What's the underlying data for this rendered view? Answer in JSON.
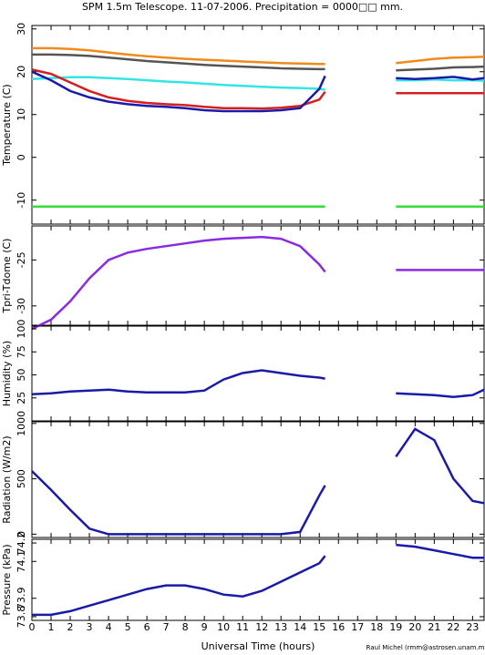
{
  "chart_data": [
    {
      "type": "line",
      "title": "SPM 1.5m Telescope. 11-07-2006. Precipitation = 0000□□ mm.",
      "ylabel": "Temperature (C)",
      "x": [
        0,
        1,
        2,
        3,
        4,
        5,
        6,
        7,
        8,
        9,
        10,
        11,
        12,
        13,
        14,
        15,
        15.3,
        17,
        19,
        20,
        21,
        22,
        23,
        23.6
      ],
      "xlim": [
        0,
        23.6
      ],
      "xticks": [
        0,
        1,
        2,
        3,
        4,
        5,
        6,
        7,
        8,
        9,
        10,
        11,
        12,
        13,
        14,
        15,
        16,
        17,
        18,
        19,
        20,
        21,
        22,
        23
      ],
      "ylim": [
        -15.6,
        30.8
      ],
      "yticks": [
        30,
        20,
        10,
        0,
        -10
      ],
      "series": [
        {
          "color": "#f08a1c",
          "values": [
            25.5,
            25.5,
            25.3,
            25,
            24.5,
            24,
            23.6,
            23.3,
            23,
            22.8,
            22.6,
            22.4,
            22.2,
            22,
            21.9,
            21.8,
            21.8,
            null,
            22,
            22.5,
            23,
            23.3,
            23.4,
            23.5
          ]
        },
        {
          "color": "#555555",
          "values": [
            24,
            24,
            23.9,
            23.7,
            23.3,
            22.9,
            22.5,
            22.2,
            21.9,
            21.6,
            21.4,
            21.2,
            21,
            20.8,
            20.7,
            20.6,
            20.6,
            null,
            20.3,
            20.5,
            20.7,
            21,
            21.1,
            21.2
          ]
        },
        {
          "color": "#33e5e5",
          "values": [
            18.3,
            18.5,
            18.7,
            18.7,
            18.5,
            18.3,
            18,
            17.7,
            17.5,
            17.2,
            16.9,
            16.7,
            16.5,
            16.3,
            16.2,
            16,
            15.8,
            null,
            18,
            18,
            18.2,
            18,
            18,
            17.9
          ]
        },
        {
          "color": "#d42020",
          "values": [
            20.5,
            19.5,
            17.5,
            15.5,
            14,
            13.2,
            12.7,
            12.4,
            12.2,
            11.8,
            11.5,
            11.5,
            11.4,
            11.6,
            12,
            13.5,
            15.3,
            null,
            15,
            15,
            15,
            15,
            15,
            15
          ]
        },
        {
          "color": "#1a1aa8",
          "values": [
            20,
            18,
            15.5,
            14,
            13,
            12.4,
            12,
            11.8,
            11.5,
            11,
            10.8,
            10.8,
            10.8,
            11,
            11.5,
            16,
            19,
            null,
            18.5,
            18.3,
            18.5,
            18.8,
            18.2,
            18.5
          ]
        },
        {
          "color": "#33dd33",
          "values": [
            -11.5,
            -11.5,
            -11.5,
            -11.5,
            -11.5,
            -11.5,
            -11.5,
            -11.5,
            -11.5,
            -11.5,
            -11.5,
            -11.5,
            -11.5,
            -11.5,
            -11.5,
            -11.5,
            -11.5,
            null,
            -11.5,
            -11.5,
            -11.5,
            -11.5,
            -11.5,
            -11.5
          ]
        }
      ]
    },
    {
      "type": "line",
      "ylabel": "Tpri-Tdome (C)",
      "x": [
        0,
        1,
        2,
        3,
        4,
        5,
        6,
        7,
        8,
        9,
        10,
        11,
        12,
        13,
        14,
        15,
        15.3,
        17,
        19,
        20,
        21,
        22,
        23,
        23.6
      ],
      "xlim": [
        0,
        23.6
      ],
      "xticks": [
        0,
        1,
        2,
        3,
        4,
        5,
        6,
        7,
        8,
        9,
        10,
        11,
        12,
        13,
        14,
        15,
        16,
        17,
        18,
        19,
        20,
        21,
        22,
        23
      ],
      "ylim": [
        -32.1,
        -21.3
      ],
      "yticks": [
        -25,
        -30
      ],
      "series": [
        {
          "color": "#8a2be2",
          "values": [
            -32.5,
            -31.5,
            -29.5,
            -27,
            -25,
            -24.2,
            -23.8,
            -23.5,
            -23.2,
            -22.9,
            -22.7,
            -22.6,
            -22.5,
            -22.7,
            -23.5,
            -25.5,
            -26.3,
            null,
            -26.1,
            -26.1,
            -26.1,
            -26.1,
            -26.1,
            -26.1
          ]
        }
      ]
    },
    {
      "type": "line",
      "ylabel": "Humidity (%)",
      "x": [
        0,
        1,
        2,
        3,
        4,
        5,
        6,
        7,
        8,
        9,
        10,
        11,
        12,
        13,
        14,
        15,
        15.3,
        17,
        19,
        20,
        21,
        22,
        23,
        23.6
      ],
      "xlim": [
        0,
        23.6
      ],
      "xticks": [
        0,
        1,
        2,
        3,
        4,
        5,
        6,
        7,
        8,
        9,
        10,
        11,
        12,
        13,
        14,
        15,
        16,
        17,
        18,
        19,
        20,
        21,
        22,
        23
      ],
      "ylim": [
        0,
        103
      ],
      "yticks": [
        100,
        75,
        50,
        25
      ],
      "series": [
        {
          "color": "#1a1aa8",
          "values": [
            29,
            30,
            32,
            33,
            34,
            32,
            31,
            31,
            31,
            33,
            45,
            52,
            55,
            52,
            49,
            47,
            46,
            null,
            30,
            29,
            28,
            26,
            28,
            34
          ]
        }
      ]
    },
    {
      "type": "line",
      "ylabel": "Radiation (W/m2)",
      "x": [
        0,
        1,
        2,
        3,
        4,
        5,
        6,
        7,
        8,
        9,
        10,
        11,
        12,
        13,
        14,
        15,
        15.3,
        17,
        19,
        20,
        21,
        22,
        23,
        23.6
      ],
      "xlim": [
        0,
        23.6
      ],
      "xticks": [
        0,
        1,
        2,
        3,
        4,
        5,
        6,
        7,
        8,
        9,
        10,
        11,
        12,
        13,
        14,
        15,
        16,
        17,
        18,
        19,
        20,
        21,
        22,
        23
      ],
      "ylim": [
        -30,
        1015
      ],
      "yticks": [
        1000,
        500,
        0
      ],
      "series": [
        {
          "color": "#1a1aa8",
          "values": [
            570,
            400,
            220,
            50,
            0,
            0,
            0,
            0,
            0,
            0,
            0,
            0,
            0,
            0,
            20,
            350,
            440,
            null,
            700,
            950,
            850,
            500,
            300,
            280
          ]
        }
      ]
    },
    {
      "type": "line",
      "ylabel": "Pressure (kPa)",
      "xlabel": "Universal Time (hours)",
      "x": [
        0,
        1,
        2,
        3,
        4,
        5,
        6,
        7,
        8,
        9,
        10,
        11,
        12,
        13,
        14,
        15,
        15.3,
        17,
        19,
        20,
        21,
        22,
        23,
        23.6
      ],
      "xlim": [
        0,
        23.6
      ],
      "xticks": [
        0,
        1,
        2,
        3,
        4,
        5,
        6,
        7,
        8,
        9,
        10,
        11,
        12,
        13,
        14,
        15,
        16,
        17,
        18,
        19,
        20,
        21,
        22,
        23
      ],
      "ylim": [
        73.78,
        74.22
      ],
      "yticks": [
        74.2,
        74.1,
        73.9,
        73.8
      ],
      "series": [
        {
          "color": "#1a1aa8",
          "values": [
            73.81,
            73.81,
            73.83,
            73.86,
            73.89,
            73.92,
            73.95,
            73.97,
            73.97,
            73.95,
            73.92,
            73.91,
            73.94,
            73.99,
            74.04,
            74.09,
            74.13,
            null,
            74.19,
            74.18,
            74.16,
            74.14,
            74.12,
            74.12
          ]
        }
      ]
    }
  ],
  "footer": "Raul Michel (rmm@astrosen.unam.mx)"
}
